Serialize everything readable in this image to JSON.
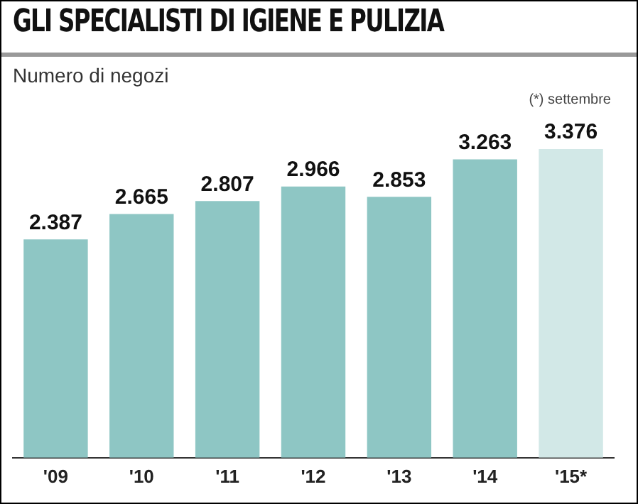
{
  "chart_data": {
    "type": "bar",
    "title": "GLI SPECIALISTI DI IGIENE E PULIZIA",
    "subtitle": "Numero di negozi",
    "annotations": [
      "(*) settembre"
    ],
    "categories": [
      "'09",
      "'10",
      "'11",
      "'12",
      "'13",
      "'14",
      "'15*"
    ],
    "values": [
      2387,
      2665,
      2807,
      2966,
      2853,
      3263,
      3376
    ],
    "colors": [
      "#8ec6c4",
      "#8ec6c4",
      "#8ec6c4",
      "#8ec6c4",
      "#8ec6c4",
      "#8ec6c4",
      "#d2e8e7"
    ],
    "value_labels": [
      "2.387",
      "2.665",
      "2.807",
      "2.966",
      "2.853",
      "3.263",
      "3.376"
    ],
    "grid": false,
    "legend": false
  }
}
